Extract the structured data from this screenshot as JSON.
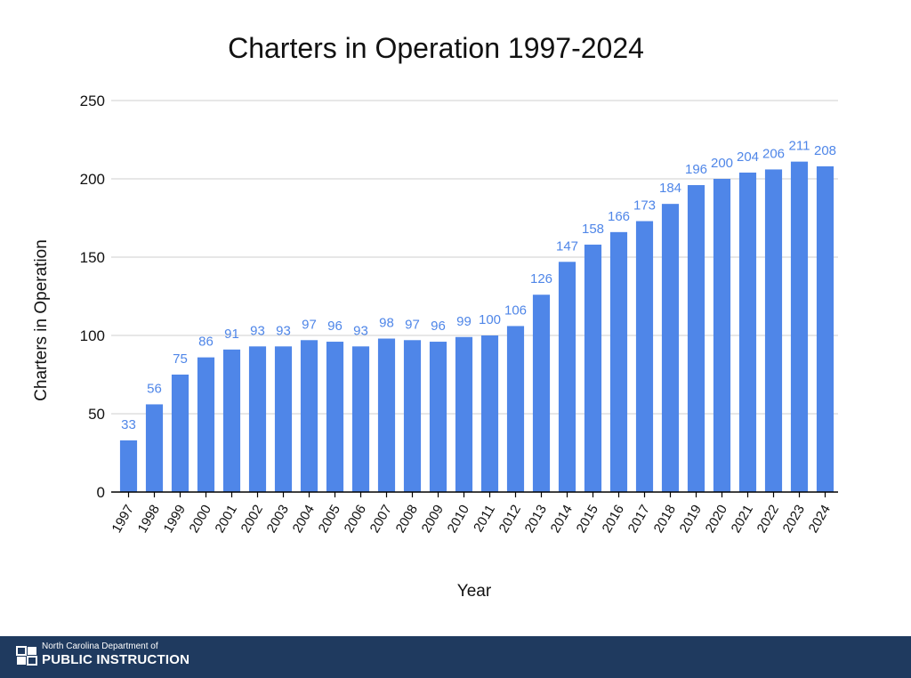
{
  "chart_data": {
    "type": "bar",
    "title": "Charters in Operation 1997-2024",
    "xlabel": "Year",
    "ylabel": "Charters in Operation",
    "ylim": [
      0,
      250
    ],
    "yticks": [
      "0",
      "50",
      "100",
      "150",
      "200",
      "250"
    ],
    "grid": true,
    "legend": "none",
    "bar_color": "#4f86e8",
    "label_color": "#4f86e8",
    "categories": [
      "1997",
      "1998",
      "1999",
      "2000",
      "2001",
      "2002",
      "2003",
      "2004",
      "2005",
      "2006",
      "2007",
      "2008",
      "2009",
      "2010",
      "2011",
      "2012",
      "2013",
      "2014",
      "2015",
      "2016",
      "2017",
      "2018",
      "2019",
      "2020",
      "2021",
      "2022",
      "2023",
      "2024"
    ],
    "values": [
      33,
      56,
      75,
      86,
      91,
      93,
      93,
      97,
      96,
      93,
      98,
      97,
      96,
      99,
      100,
      106,
      126,
      147,
      158,
      166,
      173,
      184,
      196,
      200,
      204,
      206,
      211,
      208
    ]
  },
  "footer": {
    "department": "North Carolina Department of",
    "organization": "PUBLIC INSTRUCTION",
    "logo_icon": "dpi-logo-icon",
    "background": "#1f3a5f"
  }
}
